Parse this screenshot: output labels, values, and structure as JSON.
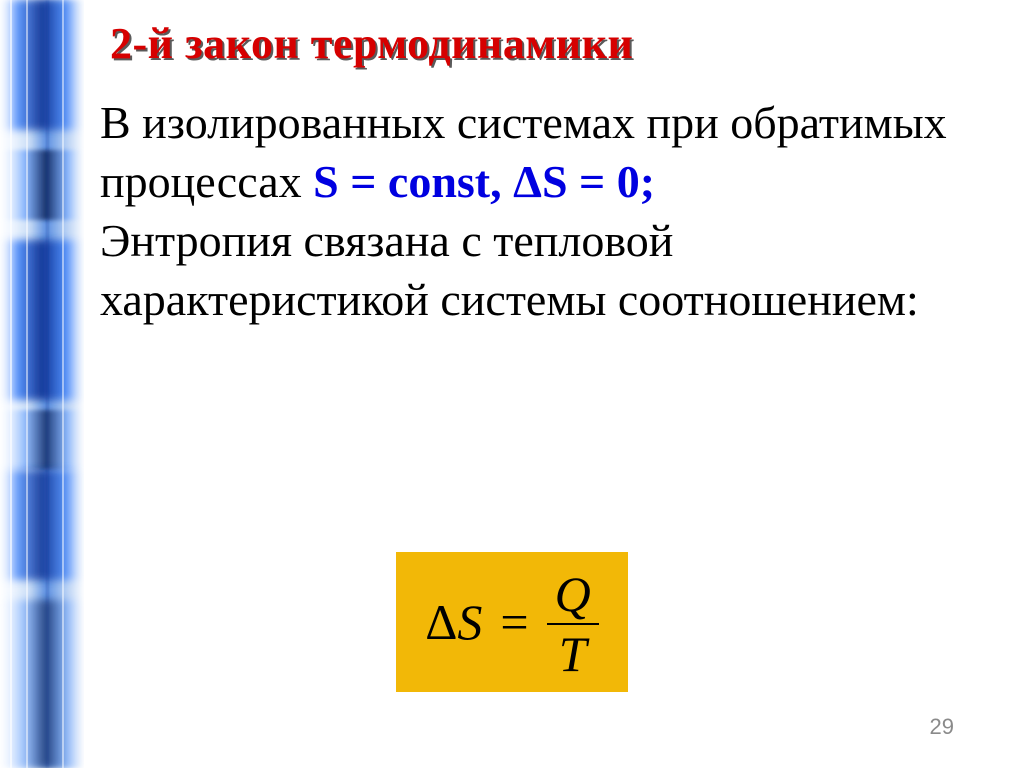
{
  "title": {
    "text": "2-й закон термодинамики",
    "color": "#d60000",
    "shadow_color": "#5a5a5a",
    "fontsize_pt": 33
  },
  "body": {
    "parts": [
      {
        "text": "В изолированных системах при обратимых процессах ",
        "color": "#000000",
        "bold": false
      },
      {
        "text": "S = const, ΔS = 0;",
        "color": "#0000e0",
        "bold": true
      },
      {
        "text": "\nЭнтропия связана с тепловой характеристикой системы соотношением:",
        "color": "#000000",
        "bold": false
      }
    ],
    "fontsize_pt": 34,
    "line_height": 1.28
  },
  "formula": {
    "lhs_delta": "Δ",
    "lhs_var": "S",
    "eq": "=",
    "numerator": "Q",
    "denominator": "T",
    "box_bg": "#f2b807",
    "text_color": "#000000",
    "fontsize_pt": 38
  },
  "page_number": "29",
  "left_stripe": {
    "colors": {
      "base_white": "#ffffff",
      "pale_blue": "#c9ddf6",
      "mid_blue": "#5b8fe0",
      "bright_blue": "#3f86ff",
      "deep_blue": "#0a2a8a",
      "navy": "#071a4d"
    }
  }
}
